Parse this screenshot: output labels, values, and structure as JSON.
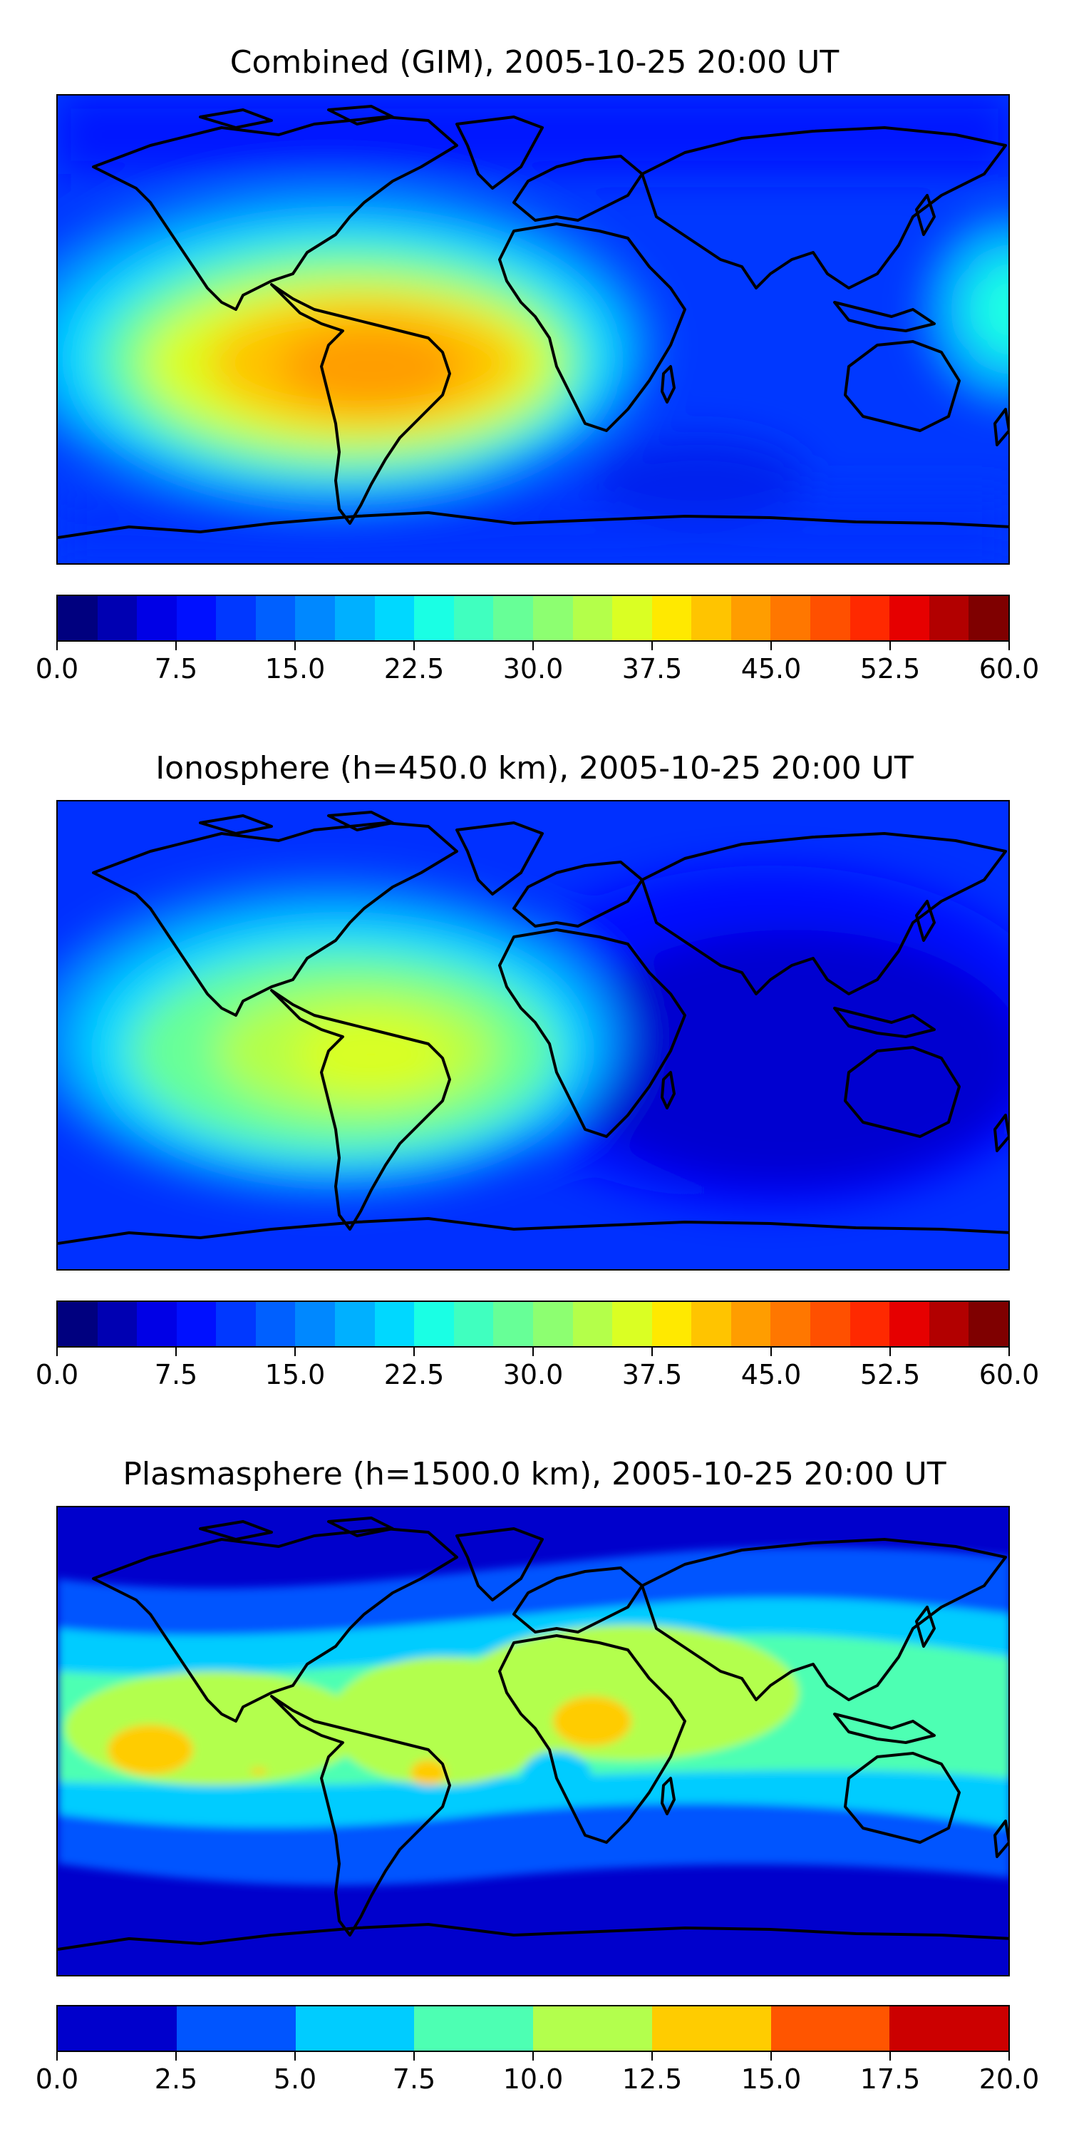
{
  "panels": [
    {
      "title": "Combined (GIM), 2005-10-25 20:00 UT",
      "colorbar": {
        "ticks": [
          "0.0",
          "7.5",
          "15.0",
          "22.5",
          "30.0",
          "37.5",
          "45.0",
          "52.5",
          "60.0"
        ],
        "colors": [
          "#00007f",
          "#0000b2",
          "#0000e6",
          "#0010ff",
          "#0038ff",
          "#0060ff",
          "#0088ff",
          "#00b0ff",
          "#00d8ff",
          "#1affe4",
          "#40ffbf",
          "#67ff97",
          "#8dff71",
          "#b4ff4a",
          "#daff23",
          "#ffe900",
          "#ffc400",
          "#ff9d00",
          "#ff7700",
          "#ff5000",
          "#ff2900",
          "#e60000",
          "#b20000",
          "#7f0000"
        ]
      }
    },
    {
      "title": "Ionosphere  (h=450.0 km), 2005-10-25 20:00 UT",
      "colorbar": {
        "ticks": [
          "0.0",
          "7.5",
          "15.0",
          "22.5",
          "30.0",
          "37.5",
          "45.0",
          "52.5",
          "60.0"
        ],
        "colors": [
          "#00007f",
          "#0000b2",
          "#0000e6",
          "#0010ff",
          "#0038ff",
          "#0060ff",
          "#0088ff",
          "#00b0ff",
          "#00d8ff",
          "#1affe4",
          "#40ffbf",
          "#67ff97",
          "#8dff71",
          "#b4ff4a",
          "#daff23",
          "#ffe900",
          "#ffc400",
          "#ff9d00",
          "#ff7700",
          "#ff5000",
          "#ff2900",
          "#e60000",
          "#b20000",
          "#7f0000"
        ]
      }
    },
    {
      "title": "Plasmasphere (h=1500.0 km), 2005-10-25 20:00 UT",
      "colorbar": {
        "ticks": [
          "0.0",
          "2.5",
          "5.0",
          "7.5",
          "10.0",
          "12.5",
          "15.0",
          "17.5",
          "20.0"
        ],
        "colors": [
          "#0000cc",
          "#0055ff",
          "#00ccff",
          "#4dffb3",
          "#b3ff4d",
          "#ffcc00",
          "#ff5500",
          "#cc0000"
        ]
      }
    }
  ]
}
